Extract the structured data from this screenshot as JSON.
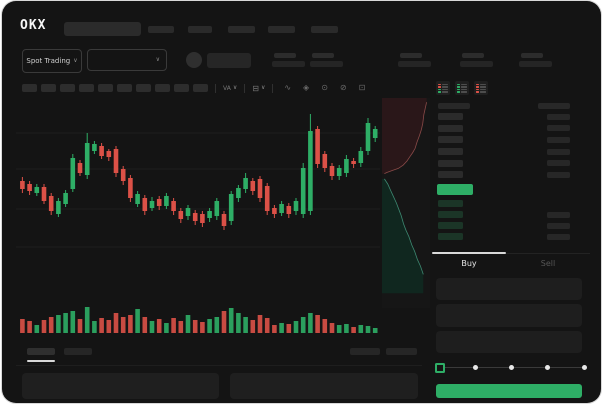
{
  "brand": {
    "logo_text": "OKX"
  },
  "header": {
    "market_selector_label": "Spot Trading",
    "chevron": "∨",
    "nav_placeholder_count": 5,
    "ticker_stat_count": 5
  },
  "toolbar": {
    "timeframe_button_count": 10,
    "indicator_label": "VA",
    "chevron": "∨"
  },
  "icons": {
    "chart_type": "⊟",
    "wave": "∿",
    "magnet": "◈",
    "camera": "⊙",
    "hide": "⊘",
    "fullscreen": "⊡"
  },
  "colors": {
    "background": "#141414",
    "placeholder": "#2a2a2a",
    "green": "#2eae66",
    "red": "#dc5147",
    "bid_row_green": "#1b3527",
    "tab_active_text": "#e8e8e8",
    "tab_inactive_text": "#565656"
  },
  "orderbook": {
    "ask_rows": 6,
    "bid_rows": 4,
    "last_price_highlight_color": "#2eae66",
    "mode_icons": [
      {
        "name": "book-combined-icon",
        "rows": [
          "#dc5147",
          "#dc5147",
          "#2eae66",
          "#2eae66"
        ]
      },
      {
        "name": "book-bids-only-icon",
        "rows": [
          "#2eae66",
          "#2eae66",
          "#2eae66",
          "#2eae66"
        ]
      },
      {
        "name": "book-asks-only-icon",
        "rows": [
          "#dc5147",
          "#dc5147",
          "#dc5147",
          "#dc5147"
        ]
      }
    ]
  },
  "trade_panel": {
    "buy_tab": "Buy",
    "sell_tab": "Sell",
    "input_count": 3,
    "slider": {
      "stops": 5,
      "active_index": 0
    },
    "submit_button_color": "#2eae66"
  },
  "chart_data": {
    "type": "candlestick",
    "title": "",
    "note_units": "relative price units read from pixel positions; no numeric axes are visible in the UI",
    "grid": true,
    "gridlines": [
      168,
      132,
      92,
      54
    ],
    "grid_color": "#1e1e1e",
    "up_color": "#2eae66",
    "down_color": "#dc5147",
    "columns": [
      "open",
      "high",
      "low",
      "close",
      "volume"
    ],
    "candles": [
      [
        120,
        124,
        108,
        112,
        14
      ],
      [
        117,
        120,
        106,
        110,
        12
      ],
      [
        108,
        117,
        105,
        114,
        8
      ],
      [
        114,
        117,
        97,
        100,
        13
      ],
      [
        105,
        108,
        86,
        90,
        16
      ],
      [
        87,
        103,
        84,
        100,
        18
      ],
      [
        97,
        111,
        94,
        108,
        20
      ],
      [
        112,
        147,
        109,
        143,
        22
      ],
      [
        138,
        141,
        125,
        128,
        14
      ],
      [
        126,
        168,
        122,
        158,
        26
      ],
      [
        150,
        160,
        147,
        157,
        12
      ],
      [
        155,
        158,
        142,
        145,
        15
      ],
      [
        150,
        152,
        140,
        144,
        13
      ],
      [
        152,
        155,
        124,
        128,
        20
      ],
      [
        132,
        135,
        116,
        120,
        16
      ],
      [
        123,
        126,
        99,
        103,
        18
      ],
      [
        97,
        110,
        94,
        107,
        24
      ],
      [
        103,
        106,
        86,
        90,
        16
      ],
      [
        93,
        104,
        90,
        100,
        12
      ],
      [
        102,
        105,
        91,
        95,
        14
      ],
      [
        95,
        108,
        92,
        105,
        10
      ],
      [
        100,
        103,
        86,
        90,
        15
      ],
      [
        90,
        93,
        78,
        82,
        12
      ],
      [
        85,
        96,
        81,
        93,
        18
      ],
      [
        88,
        91,
        76,
        80,
        13
      ],
      [
        87,
        90,
        74,
        78,
        11
      ],
      [
        83,
        93,
        79,
        90,
        14
      ],
      [
        85,
        103,
        81,
        100,
        16
      ],
      [
        87,
        90,
        71,
        75,
        22
      ],
      [
        80,
        110,
        76,
        107,
        25
      ],
      [
        103,
        116,
        99,
        113,
        20
      ],
      [
        112,
        128,
        108,
        123,
        16
      ],
      [
        120,
        123,
        106,
        110,
        13
      ],
      [
        122,
        125,
        99,
        103,
        18
      ],
      [
        115,
        118,
        86,
        90,
        15
      ],
      [
        93,
        96,
        83,
        87,
        8
      ],
      [
        88,
        100,
        85,
        97,
        10
      ],
      [
        95,
        98,
        83,
        87,
        9
      ],
      [
        90,
        103,
        86,
        100,
        12
      ],
      [
        87,
        138,
        83,
        133,
        16
      ],
      [
        90,
        187,
        86,
        170,
        20
      ],
      [
        172,
        175,
        133,
        137,
        18
      ],
      [
        147,
        150,
        129,
        133,
        14
      ],
      [
        135,
        138,
        121,
        125,
        10
      ],
      [
        125,
        136,
        121,
        133,
        8
      ],
      [
        128,
        146,
        124,
        142,
        9
      ],
      [
        140,
        143,
        133,
        137,
        6
      ],
      [
        138,
        154,
        134,
        150,
        8
      ],
      [
        150,
        183,
        146,
        178,
        7
      ],
      [
        163,
        175,
        159,
        172,
        5
      ]
    ]
  },
  "depth_chart": {
    "type": "area",
    "orientation": "vertical",
    "ask_fill": "#2a1719",
    "bid_fill": "#10271f",
    "ask_line": "#8a4a48",
    "bid_line": "#3d8871",
    "asks_line": [
      [
        0.93,
        0.02
      ],
      [
        0.9,
        0.05
      ],
      [
        0.87,
        0.08
      ],
      [
        0.85,
        0.12
      ],
      [
        0.82,
        0.15
      ],
      [
        0.78,
        0.18
      ],
      [
        0.73,
        0.21
      ],
      [
        0.69,
        0.24
      ],
      [
        0.64,
        0.26
      ],
      [
        0.58,
        0.28
      ],
      [
        0.52,
        0.3
      ],
      [
        0.44,
        0.32
      ],
      [
        0.34,
        0.335
      ],
      [
        0.22,
        0.345
      ],
      [
        0.1,
        0.355
      ],
      [
        0.05,
        0.36
      ]
    ],
    "bids_line": [
      [
        0.05,
        0.385
      ],
      [
        0.12,
        0.41
      ],
      [
        0.18,
        0.44
      ],
      [
        0.24,
        0.47
      ],
      [
        0.3,
        0.5
      ],
      [
        0.35,
        0.53
      ],
      [
        0.4,
        0.56
      ],
      [
        0.45,
        0.6
      ],
      [
        0.5,
        0.63
      ],
      [
        0.56,
        0.66
      ],
      [
        0.62,
        0.7
      ],
      [
        0.68,
        0.73
      ],
      [
        0.74,
        0.77
      ],
      [
        0.8,
        0.8
      ],
      [
        0.86,
        0.84
      ]
    ]
  }
}
